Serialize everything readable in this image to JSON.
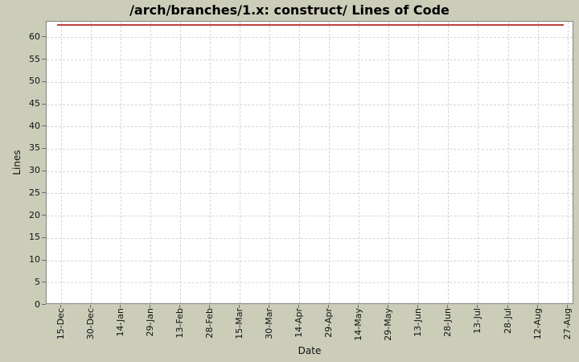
{
  "chart_data": {
    "type": "line",
    "title": "/arch/branches/1.x: construct/ Lines of Code",
    "xlabel": "Date",
    "ylabel": "Lines",
    "x_tick_labels": [
      "15-Dec",
      "30-Dec",
      "14-Jan",
      "29-Jan",
      "13-Feb",
      "28-Feb",
      "15-Mar",
      "30-Mar",
      "14-Apr",
      "29-Apr",
      "14-May",
      "29-May",
      "13-Jun",
      "28-Jun",
      "13-Jul",
      "28-Jul",
      "12-Aug",
      "27-Aug"
    ],
    "y_tick_labels": [
      0,
      5,
      10,
      15,
      20,
      25,
      30,
      35,
      40,
      45,
      50,
      55,
      60
    ],
    "ylim": [
      0,
      63.5
    ],
    "grid": true,
    "legend_position": "none",
    "series": [
      {
        "name": "Lines of Code",
        "color": "#c04040",
        "x": [
          "15-Dec",
          "30-Dec",
          "14-Jan",
          "29-Jan",
          "13-Feb",
          "28-Feb",
          "15-Mar",
          "30-Mar",
          "14-Apr",
          "29-Apr",
          "14-May",
          "29-May",
          "13-Jun",
          "28-Jun",
          "13-Jul",
          "28-Jul",
          "12-Aug",
          "27-Aug"
        ],
        "values": [
          63,
          63,
          63,
          63,
          63,
          63,
          63,
          63,
          63,
          63,
          63,
          63,
          63,
          63,
          63,
          63,
          63,
          63
        ]
      }
    ],
    "colors": {
      "background": "#cbcdb9",
      "plot_background": "#ffffff",
      "plot_border": "#848484",
      "gridline": "#d5d5d5",
      "tick": "#6b6b6b",
      "text": "#000000",
      "series_red": "#c04040"
    }
  }
}
